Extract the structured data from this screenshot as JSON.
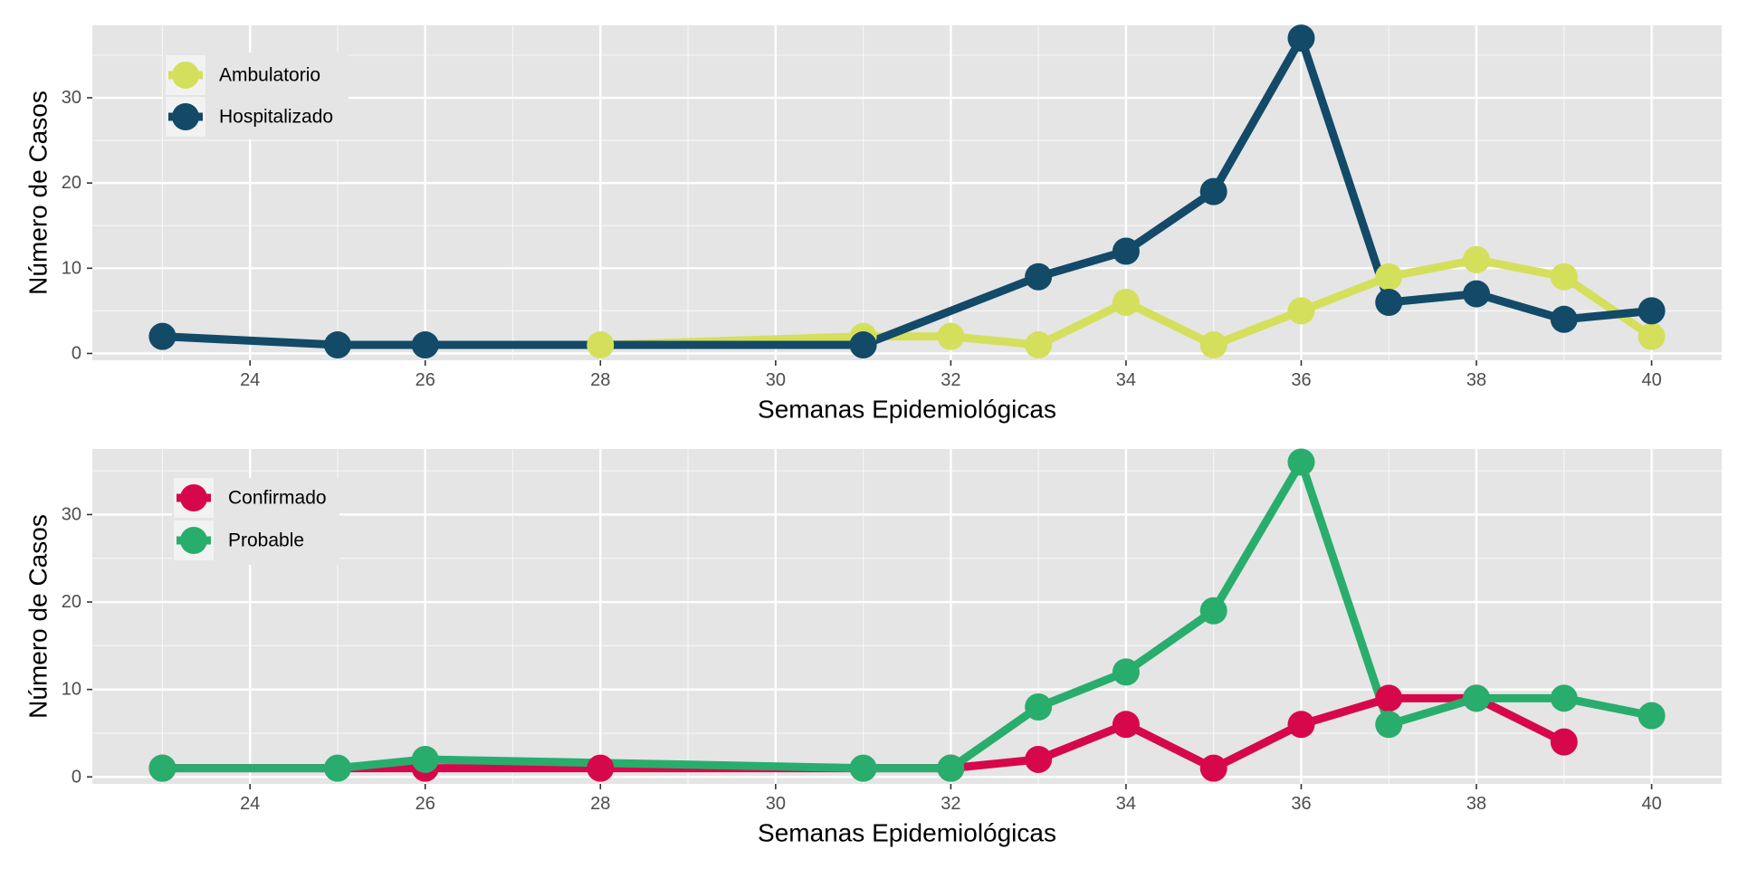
{
  "colors": {
    "panel_background": "#e5e5e5",
    "grid_major": "#ffffff",
    "ambulatorio": "#d4e05c",
    "hospitalizado": "#124a68",
    "confirmado": "#d6084b",
    "probable": "#29ad6c"
  },
  "chart_data": [
    {
      "type": "line",
      "xlabel": "Semanas Epidemiológicas",
      "ylabel": "Número de Casos",
      "xlim": [
        22.2,
        40.8
      ],
      "ylim": [
        -0.8,
        38.5
      ],
      "xticks": [
        24,
        26,
        28,
        30,
        32,
        34,
        36,
        38,
        40
      ],
      "yticks": [
        0,
        10,
        20,
        30
      ],
      "grid": true,
      "legend_position": "top-left",
      "series": [
        {
          "name": "Ambulatorio",
          "color": "#d4e05c",
          "x": [
            28,
            31,
            32,
            33,
            34,
            35,
            36,
            37,
            38,
            39,
            40
          ],
          "y": [
            1,
            2,
            2,
            1,
            6,
            1,
            5,
            9,
            11,
            9,
            2
          ]
        },
        {
          "name": "Hospitalizado",
          "color": "#124a68",
          "x": [
            23,
            25,
            26,
            31,
            33,
            34,
            35,
            36,
            37,
            38,
            39,
            40
          ],
          "y": [
            2,
            1,
            1,
            1,
            9,
            12,
            19,
            37,
            6,
            7,
            4,
            5
          ]
        }
      ]
    },
    {
      "type": "line",
      "xlabel": "Semanas Epidemiológicas",
      "ylabel": "Número de Casos",
      "xlim": [
        22.2,
        40.8
      ],
      "ylim": [
        -0.8,
        37.5
      ],
      "xticks": [
        24,
        26,
        28,
        30,
        32,
        34,
        36,
        38,
        40
      ],
      "yticks": [
        0,
        10,
        20,
        30
      ],
      "grid": true,
      "legend_position": "top-left",
      "series": [
        {
          "name": "Confirmado",
          "color": "#d6084b",
          "x": [
            23,
            26,
            28,
            32,
            33,
            34,
            35,
            36,
            37,
            38,
            39
          ],
          "y": [
            1,
            1,
            1,
            1,
            2,
            6,
            1,
            6,
            9,
            9,
            4
          ]
        },
        {
          "name": "Probable",
          "color": "#29ad6c",
          "x": [
            23,
            25,
            26,
            31,
            32,
            33,
            34,
            35,
            36,
            37,
            38,
            39,
            40
          ],
          "y": [
            1,
            1,
            2,
            1,
            1,
            8,
            12,
            19,
            36,
            6,
            9,
            9,
            7
          ]
        }
      ]
    }
  ]
}
